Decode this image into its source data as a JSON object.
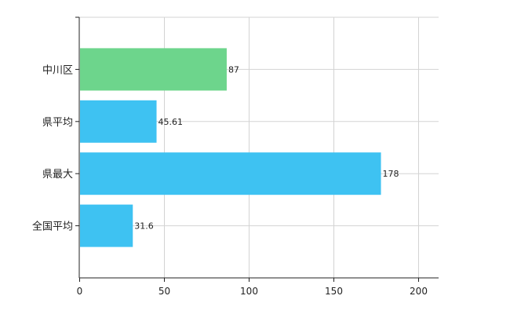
{
  "chart_data": {
    "type": "bar",
    "orientation": "horizontal",
    "categories": [
      "中川区",
      "県平均",
      "県最大",
      "全国平均"
    ],
    "values": [
      87,
      45.61,
      178,
      31.6
    ],
    "value_labels": [
      "87",
      "45.61",
      "178",
      "31.6"
    ],
    "bar_colors": [
      "#6dd58c",
      "#3ec2f2",
      "#3ec2f2",
      "#3ec2f2"
    ],
    "xlim": [
      0,
      212
    ],
    "x_ticks": [
      0,
      50,
      100,
      150,
      200
    ],
    "x_tick_labels": [
      "0",
      "50",
      "100",
      "150",
      "200"
    ],
    "grid": true,
    "title": "",
    "xlabel": "",
    "ylabel": ""
  }
}
